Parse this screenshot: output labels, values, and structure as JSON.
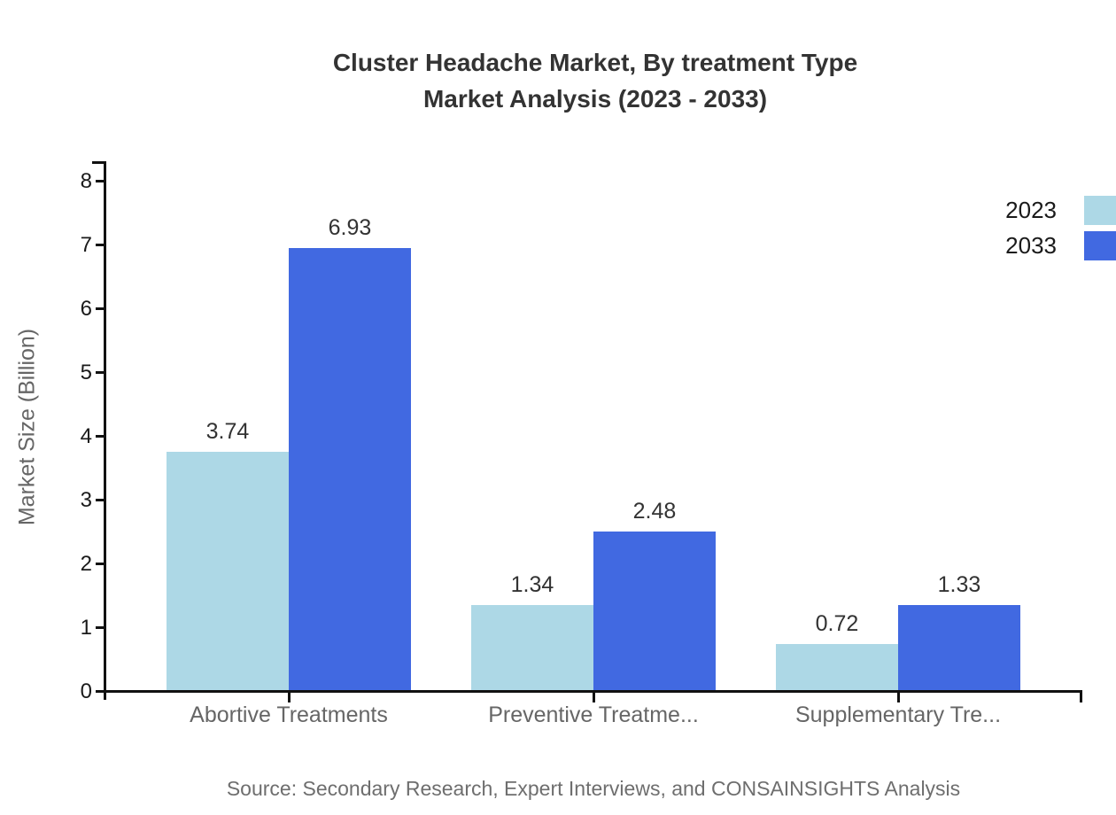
{
  "page": {
    "title_line1": "Cluster Headache Market, By treatment Type",
    "title_line2": "Market Analysis (2023 - 2033)",
    "source": "Source: Secondary Research, Expert Interviews, and CONSAINSIGHTS Analysis"
  },
  "chart_data": {
    "type": "bar",
    "title": "Cluster Headache Market, By treatment Type Market Analysis (2023 - 2033)",
    "categories": [
      "Abortive Treatments",
      "Preventive Treatme...",
      "Supplementary Tre..."
    ],
    "series": [
      {
        "name": "2023",
        "color": "#ADD8E6",
        "values": [
          3.74,
          1.34,
          0.72
        ],
        "labels": [
          "3.74",
          "1.34",
          "0.72"
        ]
      },
      {
        "name": "2033",
        "color": "#4169E1",
        "values": [
          6.93,
          2.48,
          1.33
        ],
        "labels": [
          "6.93",
          "2.48",
          "1.33"
        ]
      }
    ],
    "xlabel": "",
    "ylabel": "Market Size (Billion)",
    "ylim": [
      0,
      8
    ],
    "yticks": [
      0,
      1,
      2,
      3,
      4,
      5,
      6,
      7,
      8
    ],
    "grid": false,
    "legend_position": "top-right",
    "axis_color": "#111111",
    "value_label_color": "#333333",
    "category_label_color": "#666666"
  }
}
